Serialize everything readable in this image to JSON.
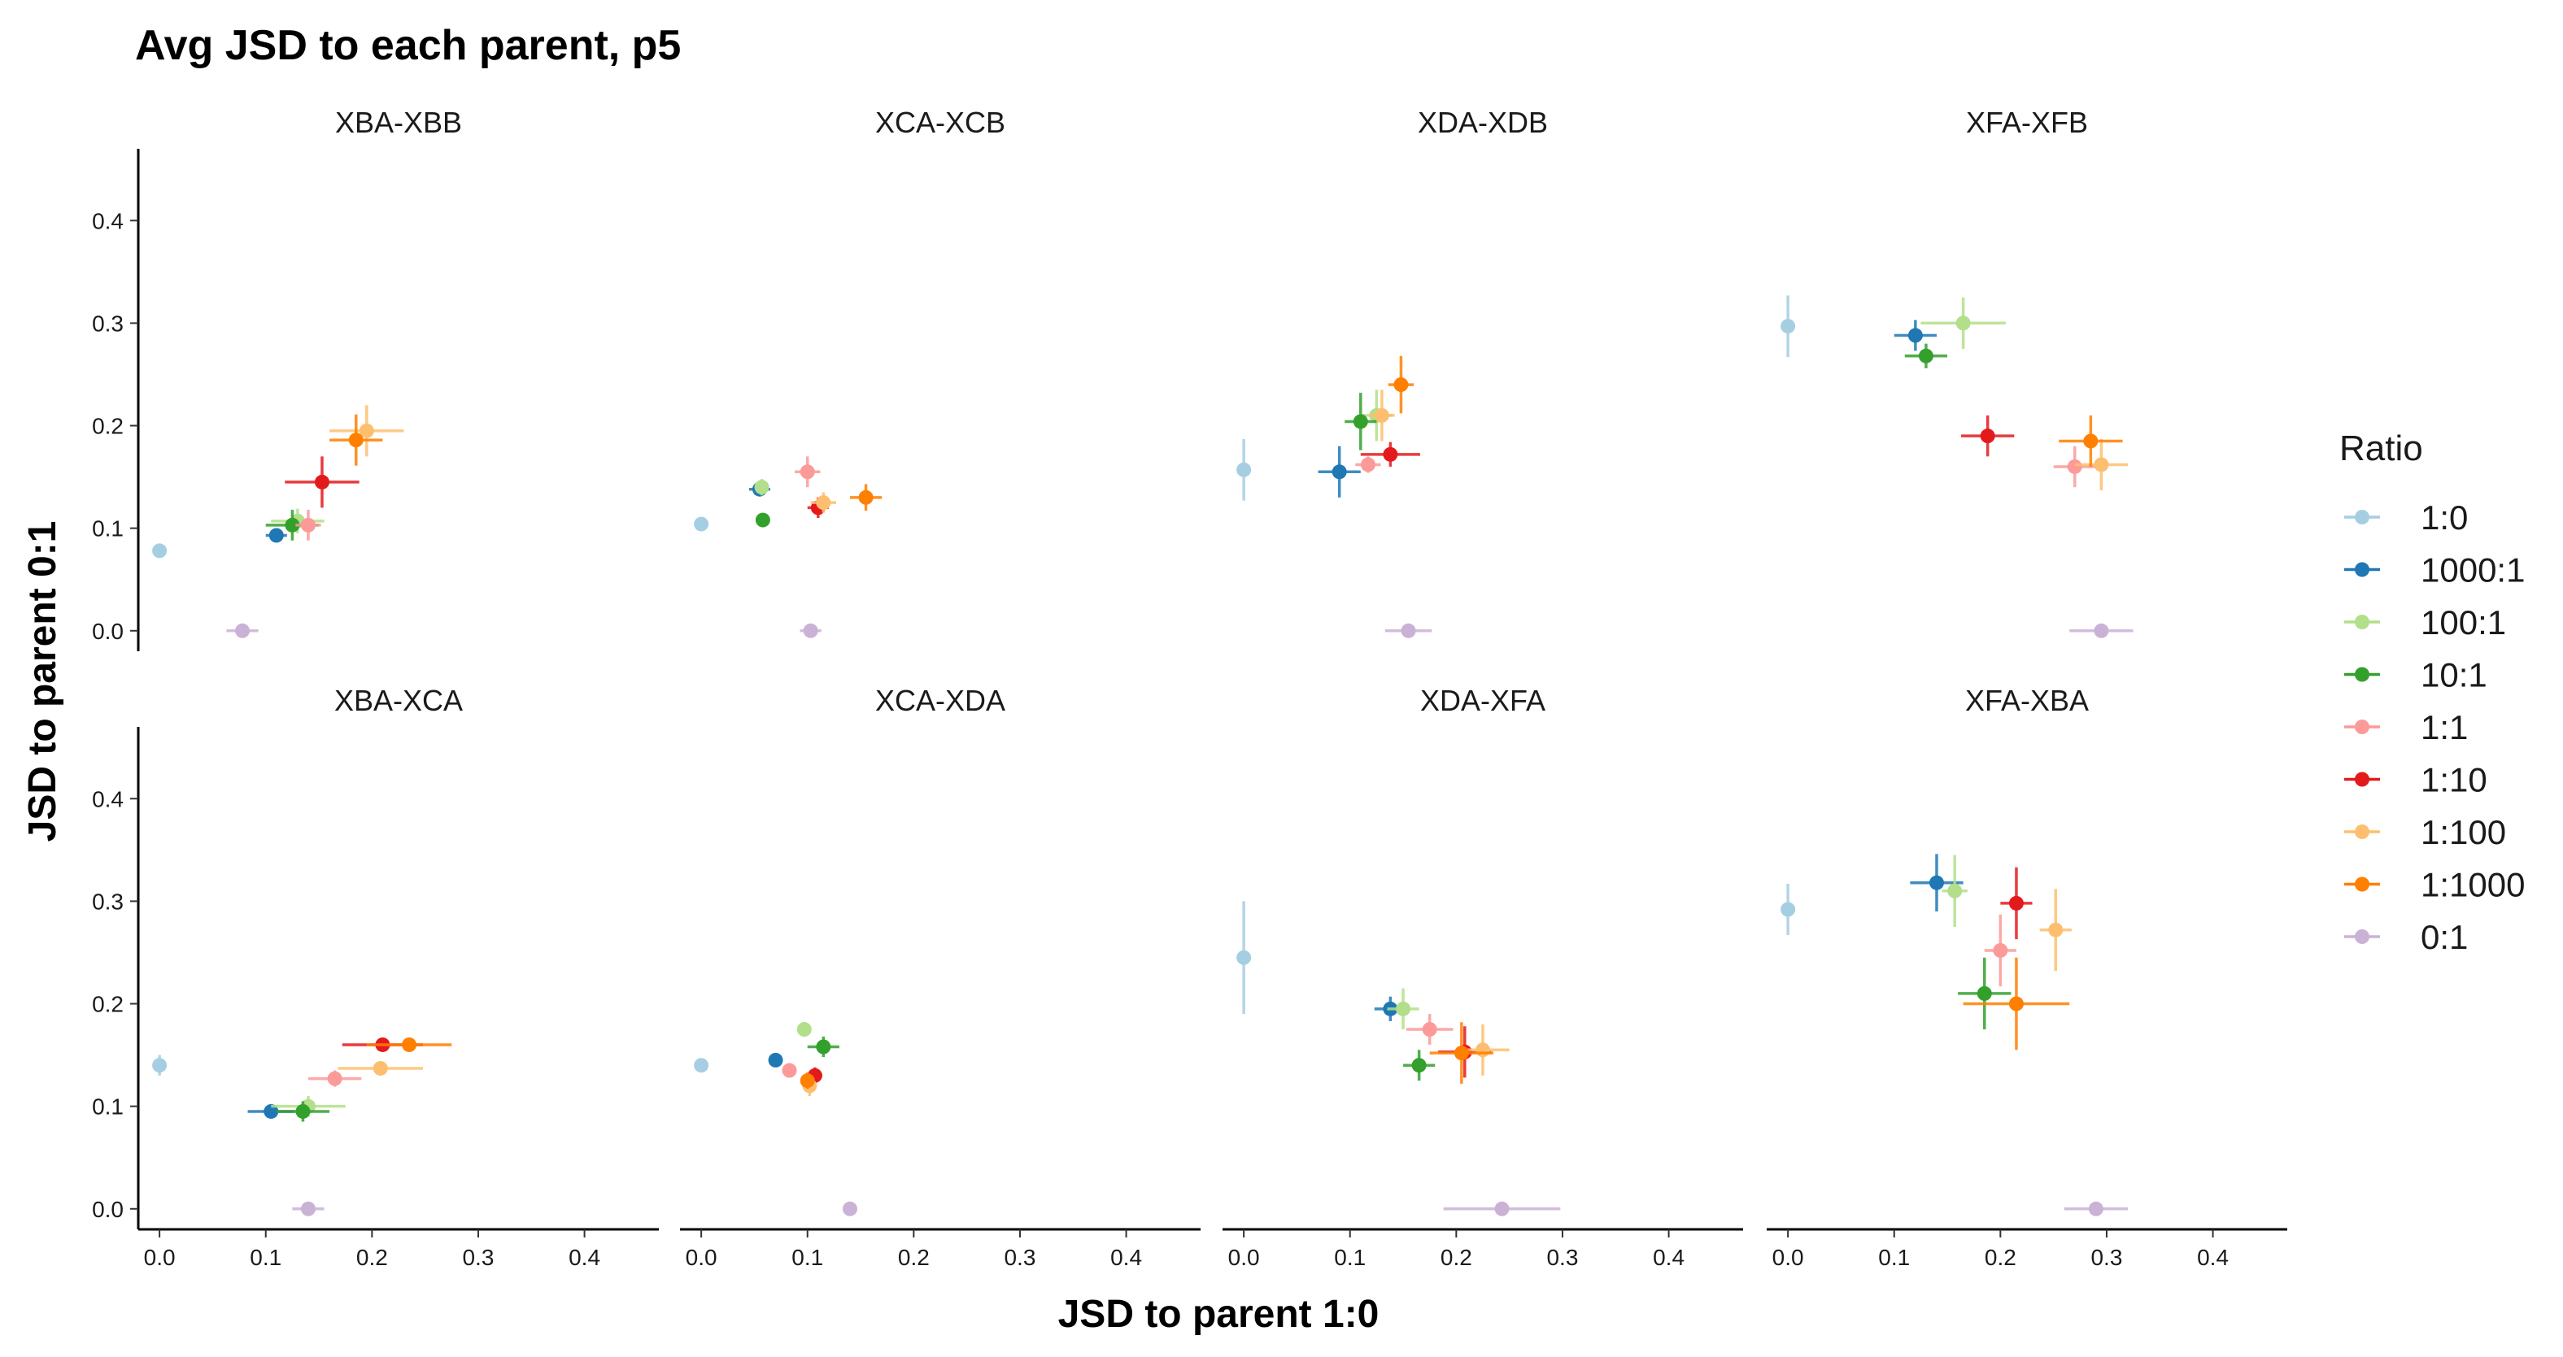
{
  "chart_data": {
    "type": "scatter",
    "title": "Avg JSD to each parent, p5",
    "xlabel": "JSD to parent 1:0",
    "ylabel": "JSD to parent 0:1",
    "xlim": [
      -0.02,
      0.47
    ],
    "ylim": [
      -0.02,
      0.47
    ],
    "x_ticks": [
      0.0,
      0.1,
      0.2,
      0.3,
      0.4
    ],
    "x_tick_labels": [
      "0.0",
      "0.1",
      "0.2",
      "0.3",
      "0.4"
    ],
    "y_ticks": [
      0.0,
      0.1,
      0.2,
      0.3,
      0.4
    ],
    "y_tick_labels": [
      "0.0",
      "0.1",
      "0.2",
      "0.3",
      "0.4"
    ],
    "grid": false,
    "legend": {
      "title": "Ratio",
      "placement": "right",
      "entries": [
        "1:0",
        "1000:1",
        "100:1",
        "10:1",
        "1:1",
        "1:10",
        "1:100",
        "1:1000",
        "0:1"
      ],
      "colors": [
        "#A6CEE3",
        "#1F78B4",
        "#B2DF8A",
        "#33A02C",
        "#FB9A99",
        "#E31A1C",
        "#FDBF6F",
        "#FF7F00",
        "#CAB2D6"
      ]
    },
    "panels": [
      {
        "label": "XBA-XBB",
        "points": [
          {
            "ratio": "1:0",
            "x": 0.0,
            "y": 0.078,
            "xerr": 0.003,
            "yerr": 0.005
          },
          {
            "ratio": "1000:1",
            "x": 0.11,
            "y": 0.093,
            "xerr": 0.01,
            "yerr": 0.006
          },
          {
            "ratio": "100:1",
            "x": 0.13,
            "y": 0.107,
            "xerr": 0.025,
            "yerr": 0.012
          },
          {
            "ratio": "10:1",
            "x": 0.125,
            "y": 0.103,
            "xerr": 0.025,
            "yerr": 0.015
          },
          {
            "ratio": "1:1",
            "x": 0.14,
            "y": 0.103,
            "xerr": 0.012,
            "yerr": 0.015
          },
          {
            "ratio": "1:10",
            "x": 0.153,
            "y": 0.145,
            "xerr": 0.035,
            "yerr": 0.025
          },
          {
            "ratio": "1:100",
            "x": 0.195,
            "y": 0.195,
            "xerr": 0.035,
            "yerr": 0.025
          },
          {
            "ratio": "1:1000",
            "x": 0.185,
            "y": 0.186,
            "xerr": 0.025,
            "yerr": 0.025
          },
          {
            "ratio": "0:1",
            "x": 0.078,
            "y": 0.0,
            "xerr": 0.015,
            "yerr": 0.003
          }
        ]
      },
      {
        "label": "XCA-XCB",
        "points": [
          {
            "ratio": "1:0",
            "x": 0.0,
            "y": 0.104,
            "xerr": 0.003,
            "yerr": 0.005
          },
          {
            "ratio": "1000:1",
            "x": 0.055,
            "y": 0.138,
            "xerr": 0.01,
            "yerr": 0.006
          },
          {
            "ratio": "100:1",
            "x": 0.057,
            "y": 0.14,
            "xerr": 0.005,
            "yerr": 0.008
          },
          {
            "ratio": "10:1",
            "x": 0.058,
            "y": 0.108,
            "xerr": 0.003,
            "yerr": 0.005
          },
          {
            "ratio": "1:1",
            "x": 0.1,
            "y": 0.155,
            "xerr": 0.012,
            "yerr": 0.015
          },
          {
            "ratio": "1:10",
            "x": 0.11,
            "y": 0.12,
            "xerr": 0.01,
            "yerr": 0.01
          },
          {
            "ratio": "1:100",
            "x": 0.115,
            "y": 0.125,
            "xerr": 0.012,
            "yerr": 0.01
          },
          {
            "ratio": "1:1000",
            "x": 0.155,
            "y": 0.13,
            "xerr": 0.015,
            "yerr": 0.013
          },
          {
            "ratio": "0:1",
            "x": 0.103,
            "y": 0.0,
            "xerr": 0.01,
            "yerr": 0.003
          }
        ]
      },
      {
        "label": "XDA-XDB",
        "points": [
          {
            "ratio": "1:0",
            "x": 0.0,
            "y": 0.157,
            "xerr": 0.003,
            "yerr": 0.03
          },
          {
            "ratio": "1000:1",
            "x": 0.09,
            "y": 0.155,
            "xerr": 0.02,
            "yerr": 0.025
          },
          {
            "ratio": "100:1",
            "x": 0.125,
            "y": 0.21,
            "xerr": 0.015,
            "yerr": 0.025
          },
          {
            "ratio": "10:1",
            "x": 0.11,
            "y": 0.204,
            "xerr": 0.015,
            "yerr": 0.028
          },
          {
            "ratio": "1:1",
            "x": 0.117,
            "y": 0.162,
            "xerr": 0.012,
            "yerr": 0.008
          },
          {
            "ratio": "1:10",
            "x": 0.138,
            "y": 0.172,
            "xerr": 0.028,
            "yerr": 0.012
          },
          {
            "ratio": "1:100",
            "x": 0.13,
            "y": 0.21,
            "xerr": 0.012,
            "yerr": 0.025
          },
          {
            "ratio": "1:1000",
            "x": 0.148,
            "y": 0.24,
            "xerr": 0.012,
            "yerr": 0.028
          },
          {
            "ratio": "0:1",
            "x": 0.155,
            "y": 0.0,
            "xerr": 0.022,
            "yerr": 0.003
          }
        ]
      },
      {
        "label": "XFA-XFB",
        "points": [
          {
            "ratio": "1:0",
            "x": 0.0,
            "y": 0.297,
            "xerr": 0.003,
            "yerr": 0.03
          },
          {
            "ratio": "1000:1",
            "x": 0.12,
            "y": 0.288,
            "xerr": 0.02,
            "yerr": 0.015
          },
          {
            "ratio": "100:1",
            "x": 0.165,
            "y": 0.3,
            "xerr": 0.04,
            "yerr": 0.025
          },
          {
            "ratio": "10:1",
            "x": 0.13,
            "y": 0.268,
            "xerr": 0.02,
            "yerr": 0.012
          },
          {
            "ratio": "1:1",
            "x": 0.27,
            "y": 0.16,
            "xerr": 0.02,
            "yerr": 0.02
          },
          {
            "ratio": "1:10",
            "x": 0.188,
            "y": 0.19,
            "xerr": 0.025,
            "yerr": 0.02
          },
          {
            "ratio": "1:100",
            "x": 0.295,
            "y": 0.162,
            "xerr": 0.025,
            "yerr": 0.025
          },
          {
            "ratio": "1:1000",
            "x": 0.285,
            "y": 0.185,
            "xerr": 0.03,
            "yerr": 0.025
          },
          {
            "ratio": "0:1",
            "x": 0.295,
            "y": 0.0,
            "xerr": 0.03,
            "yerr": 0.003
          }
        ]
      },
      {
        "label": "XBA-XCA",
        "points": [
          {
            "ratio": "1:0",
            "x": 0.0,
            "y": 0.14,
            "xerr": 0.003,
            "yerr": 0.01
          },
          {
            "ratio": "1000:1",
            "x": 0.105,
            "y": 0.095,
            "xerr": 0.022,
            "yerr": 0.006
          },
          {
            "ratio": "100:1",
            "x": 0.14,
            "y": 0.1,
            "xerr": 0.035,
            "yerr": 0.01
          },
          {
            "ratio": "10:1",
            "x": 0.135,
            "y": 0.095,
            "xerr": 0.025,
            "yerr": 0.01
          },
          {
            "ratio": "1:1",
            "x": 0.165,
            "y": 0.127,
            "xerr": 0.025,
            "yerr": 0.008
          },
          {
            "ratio": "1:10",
            "x": 0.21,
            "y": 0.16,
            "xerr": 0.038,
            "yerr": 0.006
          },
          {
            "ratio": "1:100",
            "x": 0.208,
            "y": 0.137,
            "xerr": 0.04,
            "yerr": 0.006
          },
          {
            "ratio": "1:1000",
            "x": 0.235,
            "y": 0.16,
            "xerr": 0.04,
            "yerr": 0.006
          },
          {
            "ratio": "0:1",
            "x": 0.14,
            "y": 0.0,
            "xerr": 0.015,
            "yerr": 0.003
          }
        ]
      },
      {
        "label": "XCA-XDA",
        "points": [
          {
            "ratio": "1:0",
            "x": 0.0,
            "y": 0.14,
            "xerr": 0.003,
            "yerr": 0.005
          },
          {
            "ratio": "1000:1",
            "x": 0.07,
            "y": 0.145,
            "xerr": 0.006,
            "yerr": 0.006
          },
          {
            "ratio": "100:1",
            "x": 0.097,
            "y": 0.175,
            "xerr": 0.006,
            "yerr": 0.005
          },
          {
            "ratio": "10:1",
            "x": 0.115,
            "y": 0.158,
            "xerr": 0.015,
            "yerr": 0.01
          },
          {
            "ratio": "1:1",
            "x": 0.083,
            "y": 0.135,
            "xerr": 0.006,
            "yerr": 0.005
          },
          {
            "ratio": "1:10",
            "x": 0.107,
            "y": 0.13,
            "xerr": 0.007,
            "yerr": 0.008
          },
          {
            "ratio": "1:100",
            "x": 0.102,
            "y": 0.12,
            "xerr": 0.006,
            "yerr": 0.01
          },
          {
            "ratio": "1:1000",
            "x": 0.1,
            "y": 0.125,
            "xerr": 0.006,
            "yerr": 0.008
          },
          {
            "ratio": "0:1",
            "x": 0.14,
            "y": 0.0,
            "xerr": 0.006,
            "yerr": 0.003
          }
        ]
      },
      {
        "label": "XDA-XFA",
        "points": [
          {
            "ratio": "1:0",
            "x": 0.0,
            "y": 0.245,
            "xerr": 0.003,
            "yerr": 0.055
          },
          {
            "ratio": "1000:1",
            "x": 0.138,
            "y": 0.195,
            "xerr": 0.015,
            "yerr": 0.012
          },
          {
            "ratio": "100:1",
            "x": 0.15,
            "y": 0.195,
            "xerr": 0.015,
            "yerr": 0.02
          },
          {
            "ratio": "10:1",
            "x": 0.165,
            "y": 0.14,
            "xerr": 0.015,
            "yerr": 0.015
          },
          {
            "ratio": "1:1",
            "x": 0.175,
            "y": 0.175,
            "xerr": 0.022,
            "yerr": 0.015
          },
          {
            "ratio": "1:10",
            "x": 0.208,
            "y": 0.153,
            "xerr": 0.025,
            "yerr": 0.025
          },
          {
            "ratio": "1:100",
            "x": 0.225,
            "y": 0.155,
            "xerr": 0.025,
            "yerr": 0.025
          },
          {
            "ratio": "1:1000",
            "x": 0.205,
            "y": 0.152,
            "xerr": 0.03,
            "yerr": 0.03
          },
          {
            "ratio": "0:1",
            "x": 0.243,
            "y": 0.0,
            "xerr": 0.055,
            "yerr": 0.003
          }
        ]
      },
      {
        "label": "XFA-XBA",
        "points": [
          {
            "ratio": "1:0",
            "x": 0.0,
            "y": 0.292,
            "xerr": 0.003,
            "yerr": 0.025
          },
          {
            "ratio": "1000:1",
            "x": 0.14,
            "y": 0.318,
            "xerr": 0.025,
            "yerr": 0.028
          },
          {
            "ratio": "100:1",
            "x": 0.157,
            "y": 0.31,
            "xerr": 0.012,
            "yerr": 0.035
          },
          {
            "ratio": "10:1",
            "x": 0.185,
            "y": 0.21,
            "xerr": 0.025,
            "yerr": 0.035
          },
          {
            "ratio": "1:1",
            "x": 0.2,
            "y": 0.252,
            "xerr": 0.015,
            "yerr": 0.035
          },
          {
            "ratio": "1:10",
            "x": 0.215,
            "y": 0.298,
            "xerr": 0.015,
            "yerr": 0.035
          },
          {
            "ratio": "1:100",
            "x": 0.252,
            "y": 0.272,
            "xerr": 0.015,
            "yerr": 0.04
          },
          {
            "ratio": "1:1000",
            "x": 0.215,
            "y": 0.2,
            "xerr": 0.05,
            "yerr": 0.045
          },
          {
            "ratio": "0:1",
            "x": 0.29,
            "y": 0.0,
            "xerr": 0.03,
            "yerr": 0.003
          }
        ]
      }
    ]
  }
}
